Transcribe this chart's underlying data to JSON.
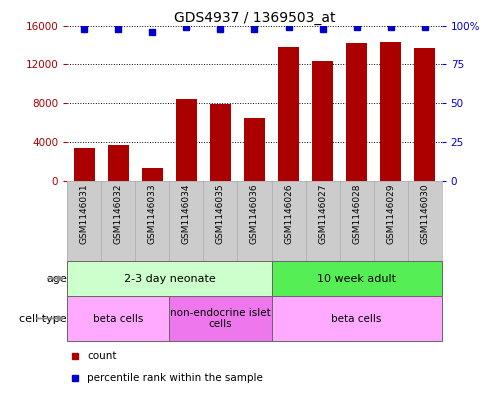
{
  "title": "GDS4937 / 1369503_at",
  "samples": [
    "GSM1146031",
    "GSM1146032",
    "GSM1146033",
    "GSM1146034",
    "GSM1146035",
    "GSM1146036",
    "GSM1146026",
    "GSM1146027",
    "GSM1146028",
    "GSM1146029",
    "GSM1146030"
  ],
  "counts": [
    3400,
    3700,
    1300,
    8400,
    7900,
    6500,
    13800,
    12400,
    14200,
    14300,
    13700
  ],
  "percentiles": [
    98,
    98,
    96,
    99,
    98,
    98,
    99,
    98,
    99,
    99,
    99
  ],
  "bar_color": "#aa0000",
  "dot_color": "#0000cc",
  "ylim_left": [
    0,
    16000
  ],
  "ylim_right": [
    0,
    100
  ],
  "yticks_left": [
    0,
    4000,
    8000,
    12000,
    16000
  ],
  "yticks_right": [
    0,
    25,
    50,
    75,
    100
  ],
  "yticklabels_right": [
    "0",
    "25",
    "50",
    "75",
    "100%"
  ],
  "age_groups": [
    {
      "label": "2-3 day neonate",
      "start": 0,
      "end": 6,
      "color": "#ccffcc"
    },
    {
      "label": "10 week adult",
      "start": 6,
      "end": 11,
      "color": "#55ee55"
    }
  ],
  "cell_type_groups": [
    {
      "label": "beta cells",
      "start": 0,
      "end": 3,
      "color": "#ffaaff"
    },
    {
      "label": "non-endocrine islet\ncells",
      "start": 3,
      "end": 6,
      "color": "#ee77ee"
    },
    {
      "label": "beta cells",
      "start": 6,
      "end": 11,
      "color": "#ffaaff"
    }
  ],
  "legend_items": [
    {
      "color": "#aa0000",
      "label": "count"
    },
    {
      "color": "#0000cc",
      "label": "percentile rank within the sample"
    }
  ],
  "background_color": "#ffffff",
  "title_fontsize": 10,
  "tick_fontsize": 7.5,
  "label_fontsize": 8,
  "sample_fontsize": 6.5,
  "legend_fontsize": 7.5,
  "sample_bg": "#cccccc",
  "sample_border": "#aaaaaa"
}
